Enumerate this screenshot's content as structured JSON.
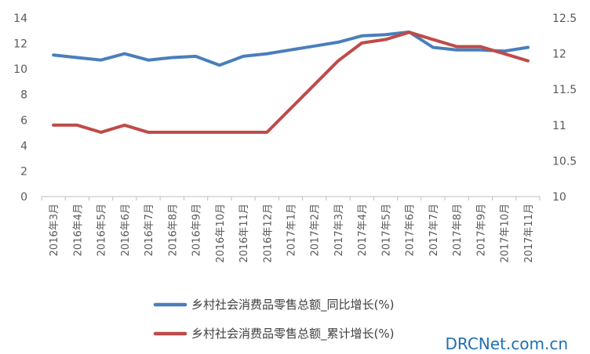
{
  "chart_data": {
    "type": "line",
    "categories": [
      "2016年3月",
      "2016年4月",
      "2016年5月",
      "2016年6月",
      "2016年7月",
      "2016年8月",
      "2016年9月",
      "2016年10月",
      "2016年11月",
      "2016年12月",
      "2017年1月",
      "2017年2月",
      "2017年3月",
      "2017年4月",
      "2017年5月",
      "2017年6月",
      "2017年7月",
      "2017年8月",
      "2017年9月",
      "2017年10月",
      "2017年11月"
    ],
    "series": [
      {
        "name": "乡村社会消费品零售总额_同比增长(%)",
        "axis": "left",
        "color": "#4a7ebb",
        "values": [
          11.1,
          10.9,
          10.7,
          11.2,
          10.7,
          10.9,
          11.0,
          10.3,
          11.0,
          11.2,
          11.5,
          11.8,
          12.1,
          12.6,
          12.7,
          12.9,
          11.7,
          11.5,
          11.5,
          11.4,
          11.7
        ]
      },
      {
        "name": "乡村社会消费品零售总额_累计增长(%)",
        "axis": "right",
        "color": "#be4b48",
        "values": [
          11.0,
          11.0,
          10.9,
          11.0,
          10.9,
          10.9,
          10.9,
          10.9,
          10.9,
          10.9,
          null,
          null,
          11.9,
          12.15,
          12.2,
          12.3,
          12.2,
          12.1,
          12.1,
          12.0,
          11.9
        ]
      }
    ],
    "y_left": {
      "min": 0,
      "max": 14,
      "ticks": [
        0,
        2,
        4,
        6,
        8,
        10,
        12,
        14
      ]
    },
    "y_right": {
      "min": 10,
      "max": 12.5,
      "ticks": [
        "10",
        "10.5",
        "11",
        "11.5",
        "12",
        "12.5"
      ]
    },
    "grid": false,
    "legend_position": "bottom"
  },
  "watermark": "DRCNet.com.cn"
}
